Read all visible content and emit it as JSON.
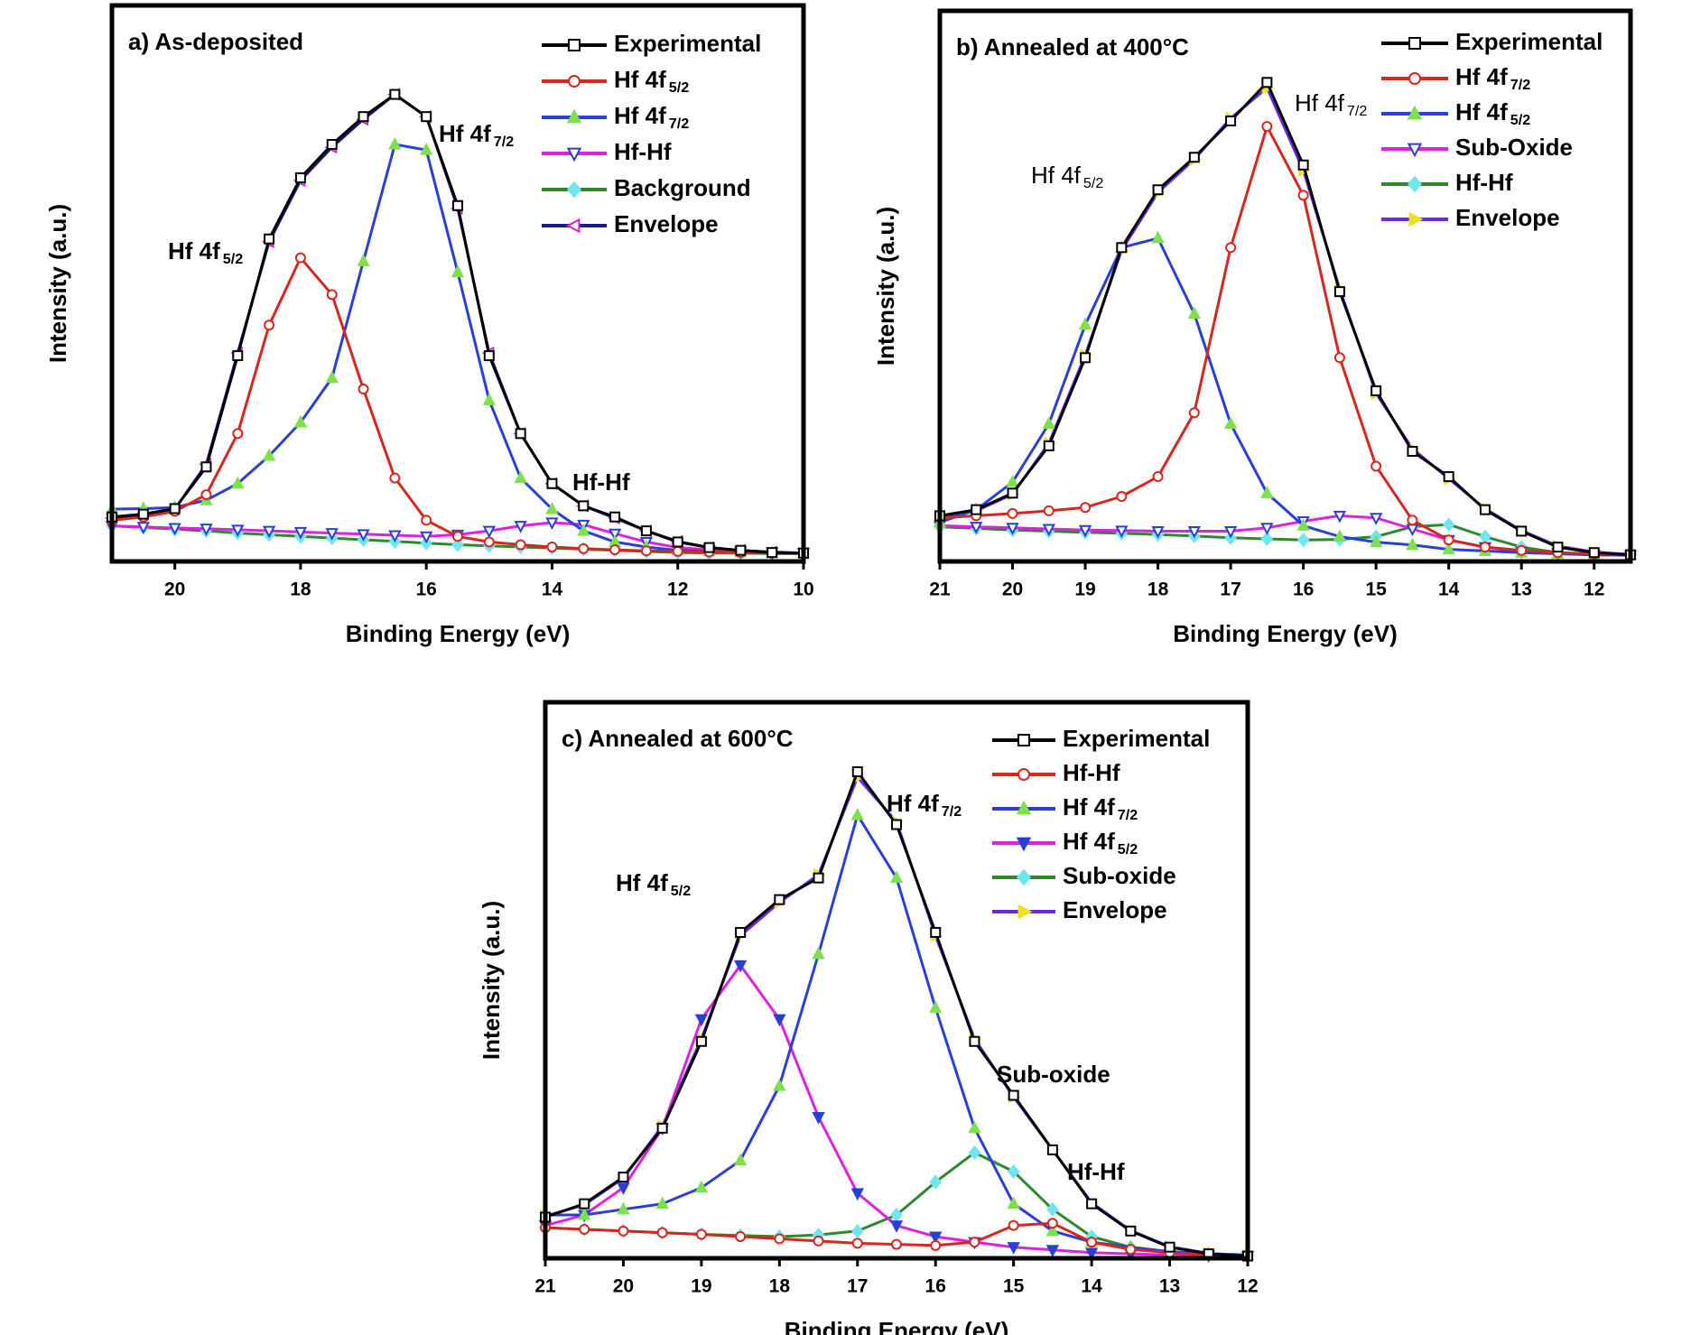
{
  "chart_data": [
    {
      "type": "line",
      "title": "a) As-deposited",
      "x_label": "Binding Energy (eV)",
      "y_label": "Intensity (a.u.)",
      "xlim": [
        21,
        10
      ],
      "xticks": [
        20,
        18,
        16,
        14,
        12,
        10
      ],
      "ylim": [
        0,
        100
      ],
      "x": [
        21,
        20.5,
        20,
        19.5,
        19,
        18.5,
        18,
        17.5,
        17,
        16.5,
        16,
        15.5,
        15,
        14.5,
        14,
        13.5,
        13,
        12.5,
        12,
        11.5,
        11,
        10.5,
        10
      ],
      "series": [
        {
          "name": "Experimental",
          "color": "#000000",
          "marker": "square",
          "marker_color": "#000000",
          "marker_open": true,
          "values": [
            8.0,
            8.5,
            9.5,
            17,
            37,
            58,
            69,
            75,
            80,
            84,
            80,
            64,
            37,
            23,
            14,
            10,
            8,
            5.5,
            3.5,
            2.5,
            2,
            1.6,
            1.5
          ]
        },
        {
          "name": "Hf 4f",
          "name_sub": "5/2",
          "color": "#d7261e",
          "marker": "circle",
          "marker_color": "#d7261e",
          "marker_open": true,
          "values": [
            7.4,
            8.0,
            9.0,
            12,
            23,
            42.5,
            54.6,
            48,
            31,
            15,
            7.4,
            4.5,
            3.5,
            3,
            2.6,
            2.3,
            2.1,
            1.9,
            1.8,
            1.7,
            1.6,
            1.5,
            1.5
          ]
        },
        {
          "name": "Hf 4f",
          "name_sub": "7/2",
          "color": "#2a3fd6",
          "marker": "tri-up",
          "marker_color": "#7ee04a",
          "marker_open": false,
          "values": [
            9.4,
            9.5,
            9.7,
            11,
            14,
            19,
            25,
            33,
            54,
            75,
            74,
            52,
            29,
            15,
            9.4,
            5.5,
            3.5,
            2.6,
            2.0,
            1.8,
            1.6,
            1.5,
            1.5
          ]
        },
        {
          "name": "Hf-Hf",
          "color": "#e020e0",
          "marker": "tri-down",
          "marker_color": "#2a3fd6",
          "marker_open": true,
          "values": [
            6.4,
            6.2,
            6.0,
            5.9,
            5.7,
            5.5,
            5.3,
            5.1,
            4.9,
            4.7,
            4.5,
            4.8,
            5.5,
            6.4,
            7.0,
            6.6,
            5.0,
            3.5,
            2.5,
            2.1,
            1.8,
            1.6,
            1.5
          ]
        },
        {
          "name": "Background",
          "color": "#2c8a2c",
          "marker": "diamond",
          "marker_color": "#6fe6f0",
          "marker_open": false,
          "values": [
            6.4,
            6.1,
            5.8,
            5.5,
            5.1,
            4.8,
            4.5,
            4.2,
            3.9,
            3.6,
            3.3,
            3.0,
            2.8,
            2.6,
            2.4,
            2.2,
            2.0,
            1.8,
            1.6,
            1.5,
            1.5,
            1.4,
            1.4
          ]
        },
        {
          "name": "Envelope",
          "color": "#1a1a8a",
          "marker": "tri-left",
          "marker_color": "#d020d0",
          "marker_open": true,
          "values": [
            7.8,
            8.4,
            9.4,
            17.5,
            37.5,
            57.5,
            68.5,
            74.5,
            79.5,
            84,
            80,
            63.5,
            37.5,
            23,
            14,
            10,
            7.8,
            5.5,
            3.6,
            2.5,
            2,
            1.7,
            1.5
          ]
        }
      ],
      "annotations": [
        {
          "text": "Hf 4f",
          "sub": "5/2"
        },
        {
          "text": "Hf 4f",
          "sub": "7/2"
        },
        {
          "text": "Hf-Hf"
        }
      ]
    },
    {
      "type": "line",
      "title": "b) Annealed at 400°C",
      "x_label": "Binding Energy (eV)",
      "y_label": "Intensity (a.u.)",
      "xlim": [
        21,
        11.5
      ],
      "xticks": [
        21,
        20,
        19,
        18,
        17,
        16,
        15,
        14,
        13,
        12
      ],
      "ylim": [
        0,
        100
      ],
      "x": [
        21,
        20.5,
        20,
        19.5,
        19,
        18.5,
        18,
        17.5,
        17,
        16.5,
        16,
        15.5,
        15,
        14.5,
        14,
        13.5,
        13,
        12.5,
        12,
        11.5
      ],
      "series": [
        {
          "name": "Experimental",
          "color": "#000000",
          "marker": "square",
          "marker_color": "#000000",
          "marker_open": true,
          "values": [
            8.3,
            9.4,
            12.4,
            21,
            37,
            57,
            67.5,
            73.4,
            80,
            87,
            72,
            49,
            31,
            20,
            15.4,
            9.4,
            5.5,
            2.6,
            1.6,
            1.2
          ]
        },
        {
          "name": "Hf 4f",
          "name_sub": "7/2",
          "color": "#d7261e",
          "marker": "circle",
          "marker_color": "#d7261e",
          "marker_open": true,
          "values": [
            7.9,
            8.3,
            8.7,
            9.2,
            9.8,
            11.8,
            15.4,
            27,
            57,
            79,
            66.5,
            37,
            17.3,
            7.5,
            3.9,
            2.6,
            2.0,
            1.6,
            1.4,
            1.2
          ]
        },
        {
          "name": "Hf 4f",
          "name_sub": "5/2",
          "color": "#2a3fd6",
          "marker": "tri-up",
          "marker_color": "#7ee04a",
          "marker_open": false,
          "values": [
            7.1,
            9.4,
            14.4,
            25,
            43,
            57,
            58.7,
            45,
            25,
            12.4,
            6.5,
            4.5,
            3.5,
            3.0,
            2.2,
            1.9,
            1.6,
            1.4,
            1.2,
            1.2
          ]
        },
        {
          "name": "Sub-Oxide",
          "color": "#e020e0",
          "marker": "tri-down",
          "marker_color": "#2a3fd6",
          "marker_open": true,
          "values": [
            6.5,
            6.3,
            6.1,
            5.9,
            5.7,
            5.6,
            5.5,
            5.5,
            5.5,
            6.1,
            7.3,
            8.3,
            7.9,
            5.9,
            3.9,
            2.6,
            1.8,
            1.5,
            1.2,
            1.1
          ]
        },
        {
          "name": "Hf-Hf",
          "color": "#2c8a2c",
          "marker": "diamond",
          "marker_color": "#6fe6f0",
          "marker_open": false,
          "values": [
            6.3,
            6.0,
            5.7,
            5.5,
            5.3,
            5.1,
            4.9,
            4.6,
            4.3,
            4.1,
            3.9,
            4.0,
            4.5,
            6.3,
            6.7,
            4.5,
            2.6,
            1.6,
            1.2,
            1.1
          ]
        },
        {
          "name": "Envelope",
          "color": "#6a2be0",
          "marker": "tri-right",
          "marker_color": "#f0e020",
          "marker_open": false,
          "values": [
            8.0,
            9.2,
            12.2,
            21.5,
            37.5,
            56.5,
            67,
            73,
            80.5,
            86,
            71,
            49.5,
            30.5,
            20.5,
            15,
            9.6,
            5.6,
            2.8,
            1.7,
            1.3
          ]
        }
      ],
      "annotations": [
        {
          "text": "Hf 4f",
          "sub": "5/2"
        },
        {
          "text": "Hf 4f",
          "sub": "7/2"
        }
      ]
    },
    {
      "type": "line",
      "title": "c) Annealed at 600°C",
      "x_label": "Binding Energy (eV)",
      "y_label": "Intensity (a.u.)",
      "xlim": [
        21,
        12
      ],
      "xticks": [
        21,
        20,
        19,
        18,
        17,
        16,
        15,
        14,
        13,
        12
      ],
      "ylim": [
        0,
        100
      ],
      "x": [
        21,
        20.5,
        20,
        19.5,
        19,
        18.5,
        18,
        17.5,
        17,
        16.5,
        16,
        15.5,
        15,
        14.5,
        14,
        13.5,
        13,
        12.5,
        12
      ],
      "series": [
        {
          "name": "Experimental",
          "color": "#000000",
          "marker": "square",
          "marker_color": "#000000",
          "marker_open": true,
          "values": [
            7.4,
            9.8,
            14.6,
            23.4,
            39,
            58.6,
            64.5,
            68.4,
            87.5,
            78,
            58.6,
            39,
            29.3,
            19.5,
            9.8,
            4.9,
            2.0,
            0.8,
            0.4
          ]
        },
        {
          "name": "Hf-Hf",
          "color": "#d7261e",
          "marker": "circle",
          "marker_color": "#d7261e",
          "marker_open": true,
          "values": [
            5.5,
            5.2,
            4.9,
            4.6,
            4.3,
            3.9,
            3.5,
            3.1,
            2.7,
            2.5,
            2.3,
            2.9,
            5.9,
            6.3,
            2.9,
            1.6,
            1.0,
            0.6,
            0.4
          ]
        },
        {
          "name": "Hf 4f",
          "name_sub": "7/2",
          "color": "#2a3fd6",
          "marker": "tri-up",
          "marker_color": "#7ee04a",
          "marker_open": false,
          "values": [
            7.8,
            7.8,
            8.8,
            9.8,
            12.7,
            17.6,
            31,
            54.7,
            79.7,
            68.4,
            45,
            23.4,
            9.8,
            4.9,
            2.9,
            2.0,
            1.2,
            0.8,
            0.6
          ]
        },
        {
          "name": "Hf 4f",
          "name_sub": "5/2",
          "color": "#e020e0",
          "marker": "tri-down",
          "marker_color": "#2a3fd6",
          "marker_open": false,
          "values": [
            5.9,
            7.8,
            12.7,
            23.4,
            43,
            52.7,
            43,
            25.4,
            11.7,
            5.9,
            3.9,
            2.9,
            2.0,
            1.5,
            1.0,
            0.8,
            0.6,
            0.5,
            0.4
          ]
        },
        {
          "name": "Sub-oxide",
          "color": "#2c8a2c",
          "marker": "diamond",
          "marker_color": "#6fe6f0",
          "marker_open": false,
          "values": [
            5.5,
            5.2,
            4.9,
            4.6,
            4.3,
            4.1,
            3.9,
            4.2,
            4.9,
            7.8,
            13.7,
            19,
            15.6,
            8.8,
            3.9,
            2.0,
            1.2,
            0.8,
            0.6
          ]
        },
        {
          "name": "Envelope",
          "color": "#6a2be0",
          "marker": "tri-right",
          "marker_color": "#f0e020",
          "marker_open": false,
          "values": [
            7.6,
            9.6,
            14.4,
            23.8,
            39.5,
            58,
            64,
            69,
            86.5,
            78.5,
            58,
            39.5,
            29,
            19.5,
            10,
            5.0,
            2.1,
            0.9,
            0.5
          ]
        }
      ],
      "annotations": [
        {
          "text": "Hf 4f",
          "sub": "5/2"
        },
        {
          "text": "Hf 4f",
          "sub": "7/2"
        },
        {
          "text": "Sub-oxide"
        },
        {
          "text": "Hf-Hf"
        }
      ]
    }
  ]
}
